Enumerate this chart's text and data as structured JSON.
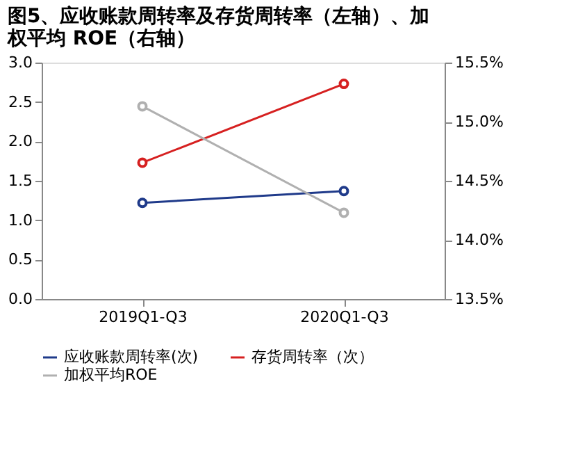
{
  "chart_data": {
    "type": "line",
    "title": "图5、应收账款周转率及存货周转率（左轴）、加权平均 ROE（右轴）",
    "categories": [
      "2019Q1-Q3",
      "2020Q1-Q3"
    ],
    "series": [
      {
        "name": "应收账款周转率(次)",
        "color": "#1f3a8a",
        "values": [
          1.22,
          1.37
        ]
      },
      {
        "name": "存货周转率（次）",
        "color": "#d62020",
        "values": [
          1.73,
          2.73
        ]
      },
      {
        "name": "加权平均ROE",
        "color": "#b0b0b0",
        "values": [
          15.13,
          14.23
        ],
        "axis": "y2"
      }
    ],
    "ylim": [
      0,
      3
    ],
    "yticks": [
      {
        "value": 0,
        "label": "0.0"
      },
      {
        "value": 0.5,
        "label": "0.5"
      },
      {
        "value": 1,
        "label": "1.0"
      },
      {
        "value": 1.5,
        "label": "1.5"
      },
      {
        "value": 2,
        "label": "2.0"
      },
      {
        "value": 2.5,
        "label": "2.5"
      },
      {
        "value": 3,
        "label": "3.0"
      }
    ],
    "y2lim": [
      13.5,
      15.5
    ],
    "y2ticks": [
      {
        "value": 13.5,
        "label": "13.5%"
      },
      {
        "value": 14.0,
        "label": "14.0%"
      },
      {
        "value": 14.5,
        "label": "14.5%"
      },
      {
        "value": 15.0,
        "label": "15.0%"
      },
      {
        "value": 15.5,
        "label": "15.5%"
      }
    ],
    "marker": "circle",
    "grid": false,
    "legend": "bottom"
  }
}
